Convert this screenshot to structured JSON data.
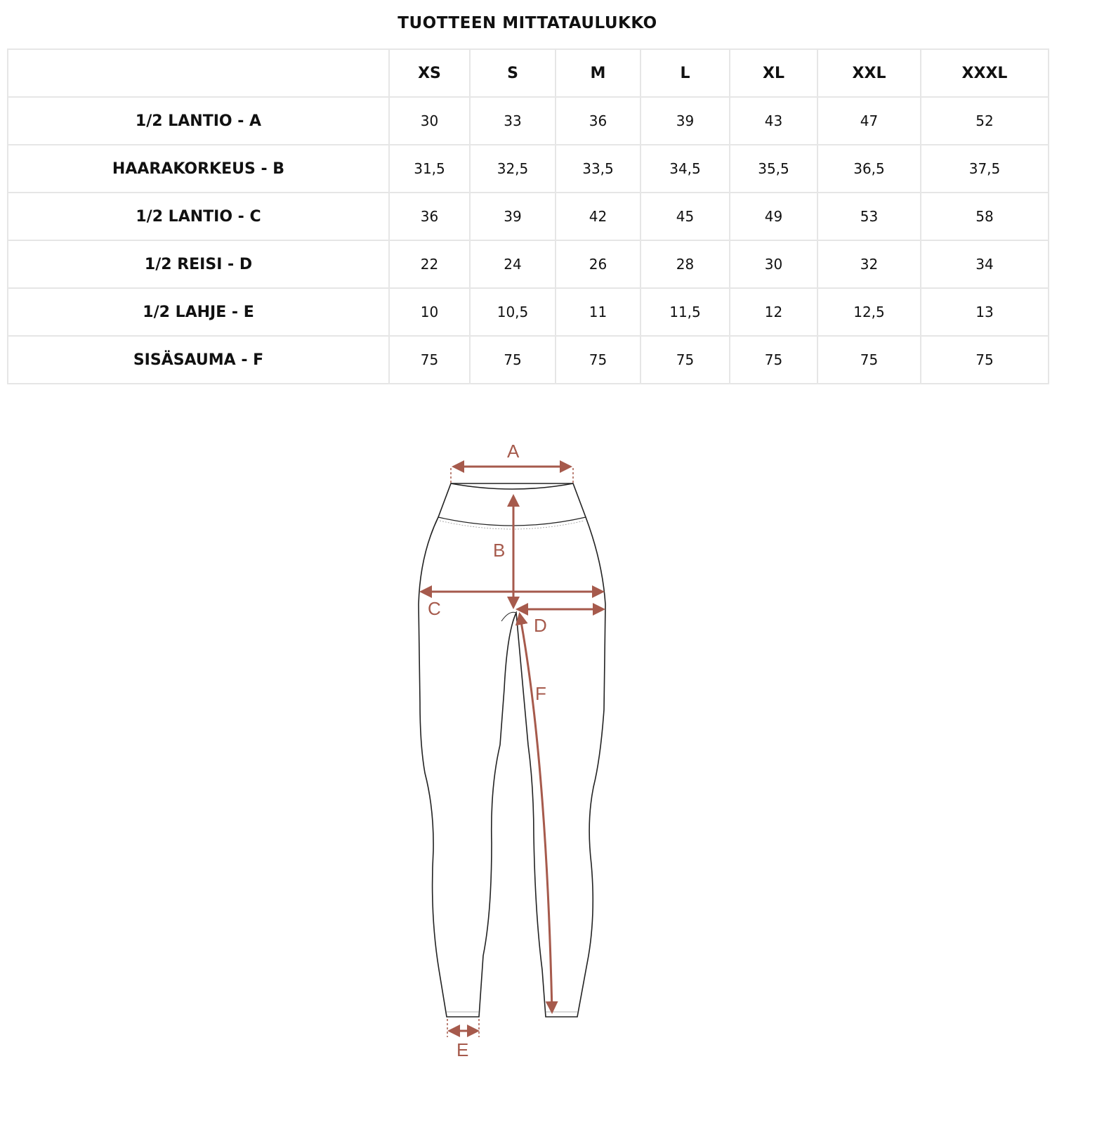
{
  "title": "TUOTTEEN MITTATAULUKKO",
  "sizes": [
    "XS",
    "S",
    "M",
    "L",
    "XL",
    "XXL",
    "XXXL"
  ],
  "rows": [
    {
      "label": "1/2 LANTIO - A",
      "values": [
        "30",
        "33",
        "36",
        "39",
        "43",
        "47",
        "52"
      ]
    },
    {
      "label": "HAARAKORKEUS - B",
      "values": [
        "31,5",
        "32,5",
        "33,5",
        "34,5",
        "35,5",
        "36,5",
        "37,5"
      ]
    },
    {
      "label": "1/2 LANTIO - C",
      "values": [
        "36",
        "39",
        "42",
        "45",
        "49",
        "53",
        "58"
      ]
    },
    {
      "label": "1/2 REISI - D",
      "values": [
        "22",
        "24",
        "26",
        "28",
        "30",
        "32",
        "34"
      ]
    },
    {
      "label": "1/2 LAHJE - E",
      "values": [
        "10",
        "10,5",
        "11",
        "11,5",
        "12",
        "12,5",
        "13"
      ]
    },
    {
      "label": "SISÄSAUMA - F",
      "values": [
        "75",
        "75",
        "75",
        "75",
        "75",
        "75",
        "75"
      ]
    }
  ],
  "diagram": {
    "labels": {
      "a": "A",
      "b": "B",
      "c": "C",
      "d": "D",
      "e": "E",
      "f": "F"
    },
    "accent_color": "#a65a4c",
    "outline_color": "#222222"
  }
}
